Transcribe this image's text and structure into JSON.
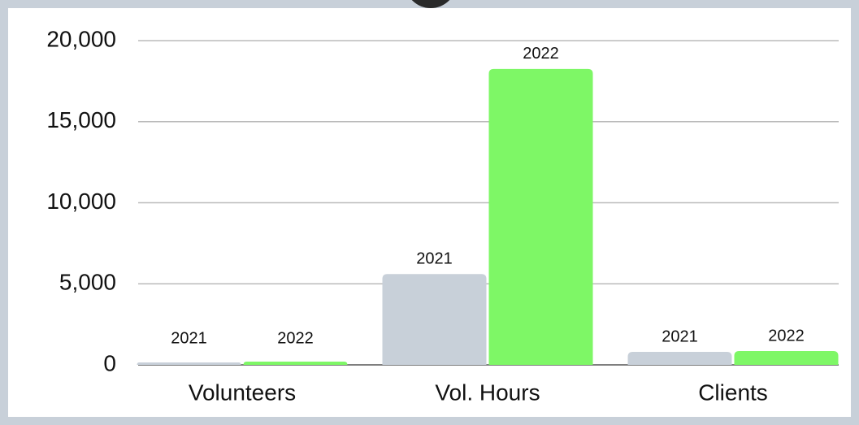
{
  "chart_data": {
    "type": "bar",
    "categories": [
      "Volunteers",
      "Vol. Hours",
      "Clients"
    ],
    "series": [
      {
        "name": "2021",
        "color": "#c8d0d9",
        "values": [
          150,
          5600,
          800
        ]
      },
      {
        "name": "2022",
        "color": "#7ef766",
        "values": [
          200,
          18250,
          850
        ]
      }
    ],
    "ylim": [
      0,
      20000
    ],
    "yticks": [
      0,
      {
        "value": 5000,
        "label": "5,000"
      },
      {
        "value": 10000,
        "label": "10,000"
      },
      {
        "value": 15000,
        "label": "15,000"
      },
      {
        "value": 20000,
        "label": "20,000"
      }
    ],
    "grid": true
  }
}
